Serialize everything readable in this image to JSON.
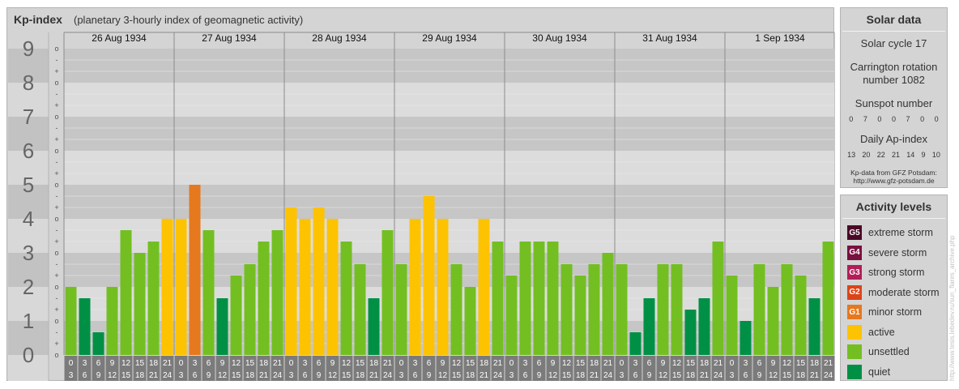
{
  "title": "Kp-index",
  "subtitle": "(planetary 3-hourly index of geomagnetic activity)",
  "chart_data": {
    "type": "bar",
    "days": [
      "26 Aug 1934",
      "27 Aug 1934",
      "28 Aug 1934",
      "29 Aug 1934",
      "30 Aug 1934",
      "31 Aug 1934",
      "1 Sep 1934"
    ],
    "hour_start": [
      "0",
      "3",
      "6",
      "9",
      "12",
      "15",
      "18",
      "21"
    ],
    "hour_end": [
      "3",
      "6",
      "9",
      "12",
      "15",
      "18",
      "21",
      "24"
    ],
    "kp_axis": [
      "0",
      "1",
      "2",
      "3",
      "4",
      "5",
      "6",
      "7",
      "8",
      "9"
    ],
    "scale_marks": [
      "o",
      "+",
      "-",
      "o",
      "+",
      "-",
      "o",
      "+",
      "-",
      "o",
      "+",
      "-",
      "o",
      "+",
      "-",
      "o",
      "+",
      "-",
      "o",
      "+",
      "-",
      "o",
      "+",
      "-",
      "o",
      "+",
      "-",
      "o"
    ],
    "ylim": [
      0,
      9
    ],
    "values": [
      2.0,
      1.667,
      0.667,
      2.0,
      3.667,
      3.0,
      3.333,
      4.0,
      4.0,
      5.0,
      3.667,
      1.667,
      2.333,
      2.667,
      3.333,
      3.667,
      4.333,
      4.0,
      4.333,
      4.0,
      3.333,
      2.667,
      1.667,
      3.667,
      2.667,
      4.0,
      4.667,
      4.0,
      2.667,
      2.0,
      4.0,
      3.333,
      2.333,
      3.333,
      3.333,
      3.333,
      2.667,
      2.333,
      2.667,
      3.0,
      2.667,
      0.667,
      1.667,
      2.667,
      2.667,
      1.333,
      1.667,
      3.333,
      2.333,
      1.0,
      2.667,
      2.0,
      2.667,
      2.333,
      1.667,
      3.333
    ],
    "level_colors": {
      "quiet": "#009045",
      "unsettled": "#73bf22",
      "active": "#fdc300",
      "minor": "#e6781e",
      "moderate": "#dc4418",
      "strong": "#b31e57",
      "severe": "#7a1040",
      "extreme": "#4a0a26"
    },
    "grid_bands": [
      "#c6c6c6",
      "#dcdcdc"
    ]
  },
  "solar": {
    "title": "Solar data",
    "cycle": "Solar cycle 17",
    "carrington_line1": "Carrington rotation",
    "carrington_line2": "number 1082",
    "sunspot_label": "Sunspot number",
    "sunspot_values": [
      "0",
      "7",
      "0",
      "0",
      "7",
      "0",
      "0"
    ],
    "ap_label": "Daily Ap-index",
    "ap_values": [
      "13",
      "20",
      "22",
      "21",
      "14",
      "9",
      "10"
    ],
    "source_line1": "Kp-data from GFZ Potsdam:",
    "source_line2": "http://www.gfz-potsdam.de"
  },
  "activity": {
    "title": "Activity levels",
    "levels": [
      {
        "code": "G5",
        "label": "extreme storm",
        "color": "#4a0a26"
      },
      {
        "code": "G4",
        "label": "severe storm",
        "color": "#7a1040"
      },
      {
        "code": "G3",
        "label": "strong storm",
        "color": "#b31e57"
      },
      {
        "code": "G2",
        "label": "moderate storm",
        "color": "#dc4418"
      },
      {
        "code": "G1",
        "label": "minor storm",
        "color": "#e6781e"
      },
      {
        "code": "",
        "label": "active",
        "color": "#fdc300"
      },
      {
        "code": "",
        "label": "unsettled",
        "color": "#73bf22"
      },
      {
        "code": "",
        "label": "quiet",
        "color": "#009045"
      }
    ]
  },
  "watermark": "http://www.tesis.lebedev.ru/sun_flares_archive.php"
}
